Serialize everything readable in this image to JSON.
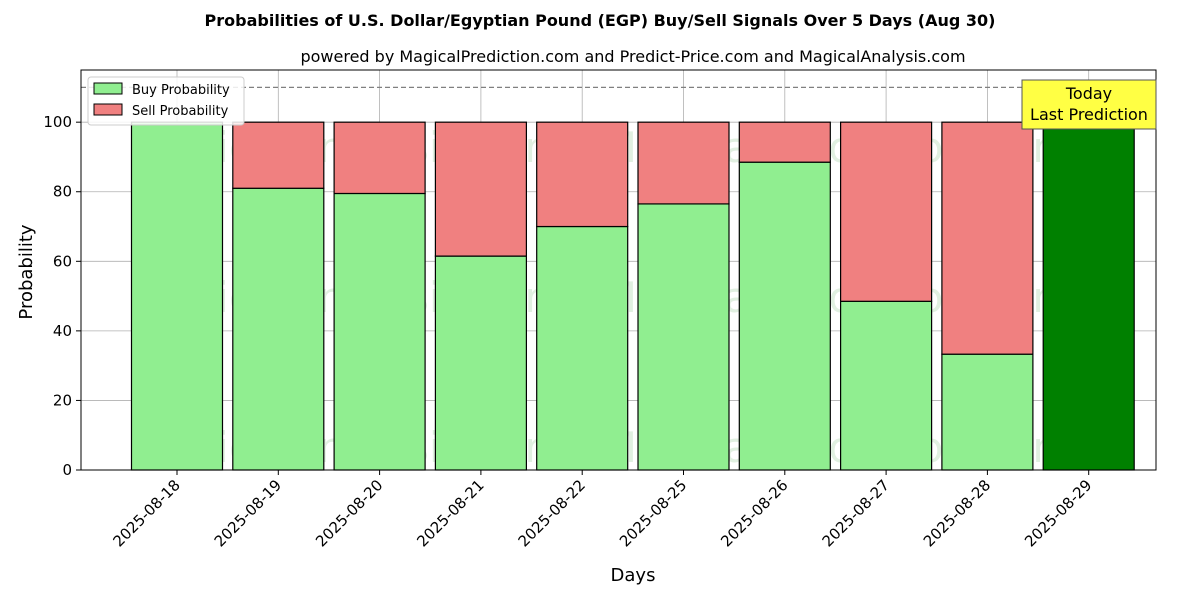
{
  "chart_data": {
    "type": "bar",
    "stacked": true,
    "title": "Probabilities of U.S. Dollar/Egyptian Pound (EGP) Buy/Sell Signals Over 5 Days (Aug 30)",
    "subtitle": "powered by MagicalPrediction.com and Predict-Price.com and MagicalAnalysis.com",
    "xlabel": "Days",
    "ylabel": "Probability",
    "ylim": [
      0,
      115
    ],
    "yticks": [
      0,
      20,
      40,
      60,
      80,
      100
    ],
    "grid": true,
    "legend_placement": "top-left",
    "reference_line": 110,
    "categories": [
      "2025-08-18",
      "2025-08-19",
      "2025-08-20",
      "2025-08-21",
      "2025-08-22",
      "2025-08-25",
      "2025-08-26",
      "2025-08-27",
      "2025-08-28",
      "2025-08-29"
    ],
    "series": [
      {
        "name": "Buy Probability",
        "color": "#90ee90",
        "values": [
          100,
          81,
          79.5,
          61.5,
          70,
          76.5,
          88.5,
          48.5,
          33.3,
          100
        ]
      },
      {
        "name": "Sell Probability",
        "color": "#f08080",
        "values": [
          0,
          19,
          20.5,
          38.5,
          30,
          23.5,
          11.5,
          51.5,
          66.7,
          0
        ]
      }
    ],
    "highlight": {
      "index": 9,
      "color": "#008000"
    },
    "annotation": {
      "lines": [
        "Today",
        "Last Prediction"
      ],
      "background": "#ffff44"
    },
    "watermarks": [
      "MagicalAnalysis.com",
      "MagicalPrediction.com"
    ]
  }
}
